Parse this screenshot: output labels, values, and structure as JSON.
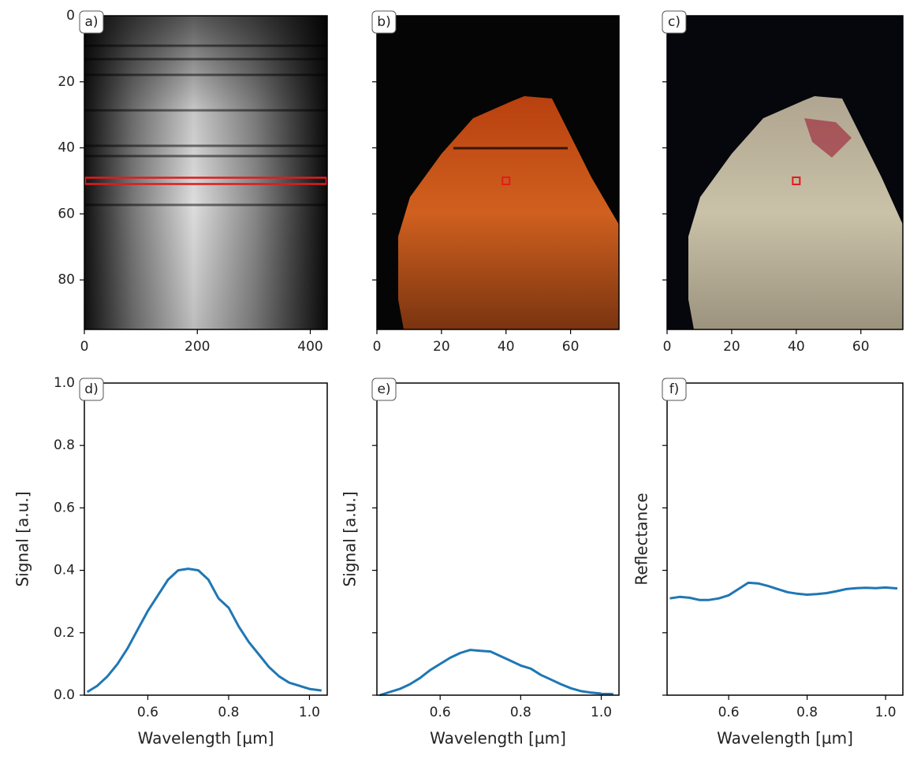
{
  "chart_data": [
    {
      "type": "image",
      "title": "a)",
      "xlim": [
        0,
        430
      ],
      "ylim": [
        95,
        0
      ],
      "xticks": [
        0,
        200,
        400
      ],
      "yticks": [
        0,
        20,
        40,
        60,
        80
      ],
      "ytick_labels": true,
      "marker_row": 50,
      "marker_color": "#e41a1c"
    },
    {
      "type": "image",
      "title": "b)",
      "xlim": [
        0,
        75
      ],
      "ylim": [
        95,
        0
      ],
      "xticks": [
        0,
        20,
        40,
        60
      ],
      "yticks": [
        0,
        20,
        40,
        60,
        80
      ],
      "ytick_labels": false,
      "marker_x": 40,
      "marker_y": 50,
      "marker_color": "#e41a1c"
    },
    {
      "type": "image",
      "title": "c)",
      "xlim": [
        0,
        73
      ],
      "ylim": [
        95,
        0
      ],
      "xticks": [
        0,
        20,
        40,
        60
      ],
      "yticks": [
        0,
        20,
        40,
        60,
        80
      ],
      "ytick_labels": false,
      "marker_x": 40,
      "marker_y": 50,
      "marker_color": "#e41a1c"
    },
    {
      "type": "line",
      "title": "d)",
      "xlabel": "Wavelength [µm]",
      "ylabel": "Signal [a.u.]",
      "color": "#1f77b4",
      "xlim": [
        0.443,
        1.044
      ],
      "ylim": [
        0,
        1
      ],
      "xticks": [
        0.6,
        0.8,
        {
          "value": 1,
          "label": "1.0"
        }
      ],
      "yticks": [
        {
          "value": 0,
          "label": "0.0"
        },
        0.2,
        0.4,
        0.6,
        0.8,
        {
          "value": 1,
          "label": "1.0"
        }
      ],
      "ytick_labels": true,
      "x": [
        0.45,
        0.475,
        0.5,
        0.525,
        0.55,
        0.575,
        0.6,
        0.625,
        0.65,
        0.675,
        0.7,
        0.725,
        0.75,
        0.775,
        0.8,
        0.825,
        0.85,
        0.875,
        0.9,
        0.925,
        0.95,
        0.975,
        1.0,
        1.03
      ],
      "values": [
        0.01,
        0.03,
        0.06,
        0.1,
        0.15,
        0.21,
        0.27,
        0.32,
        0.37,
        0.4,
        0.405,
        0.4,
        0.37,
        0.31,
        0.28,
        0.22,
        0.17,
        0.13,
        0.09,
        0.06,
        0.04,
        0.03,
        0.02,
        0.015
      ]
    },
    {
      "type": "line",
      "title": "e)",
      "xlabel": "Wavelength [µm]",
      "ylabel": "Signal [a.u.]",
      "color": "#1f77b4",
      "xlim": [
        0.443,
        1.044
      ],
      "ylim": [
        0,
        1
      ],
      "xticks": [
        0.6,
        0.8,
        {
          "value": 1,
          "label": "1.0"
        }
      ],
      "yticks": [
        0,
        0.2,
        0.4,
        0.6,
        0.8,
        1
      ],
      "ytick_labels": false,
      "x": [
        0.45,
        0.475,
        0.5,
        0.525,
        0.55,
        0.575,
        0.6,
        0.625,
        0.65,
        0.675,
        0.7,
        0.725,
        0.75,
        0.775,
        0.8,
        0.825,
        0.85,
        0.875,
        0.9,
        0.925,
        0.95,
        0.975,
        1.0,
        1.03
      ],
      "values": [
        0.0,
        0.01,
        0.02,
        0.035,
        0.055,
        0.08,
        0.1,
        0.12,
        0.135,
        0.145,
        0.142,
        0.14,
        0.125,
        0.11,
        0.095,
        0.085,
        0.065,
        0.05,
        0.035,
        0.022,
        0.013,
        0.008,
        0.005,
        0.003
      ]
    },
    {
      "type": "line",
      "title": "f)",
      "xlabel": "Wavelength [µm]",
      "ylabel": "Reflectance",
      "color": "#1f77b4",
      "xlim": [
        0.443,
        1.044
      ],
      "ylim": [
        0,
        1
      ],
      "xticks": [
        0.6,
        0.8,
        {
          "value": 1,
          "label": "1.0"
        }
      ],
      "yticks": [
        0,
        0.2,
        0.4,
        0.6,
        0.8,
        1
      ],
      "ytick_labels": false,
      "x": [
        0.45,
        0.475,
        0.5,
        0.525,
        0.55,
        0.575,
        0.6,
        0.625,
        0.65,
        0.675,
        0.7,
        0.725,
        0.75,
        0.775,
        0.8,
        0.825,
        0.85,
        0.875,
        0.9,
        0.925,
        0.95,
        0.975,
        1.0,
        1.03
      ],
      "values": [
        0.31,
        0.315,
        0.312,
        0.305,
        0.305,
        0.31,
        0.32,
        0.34,
        0.36,
        0.358,
        0.35,
        0.34,
        0.33,
        0.325,
        0.322,
        0.324,
        0.327,
        0.333,
        0.34,
        0.343,
        0.344,
        0.343,
        0.345,
        0.342
      ]
    }
  ]
}
